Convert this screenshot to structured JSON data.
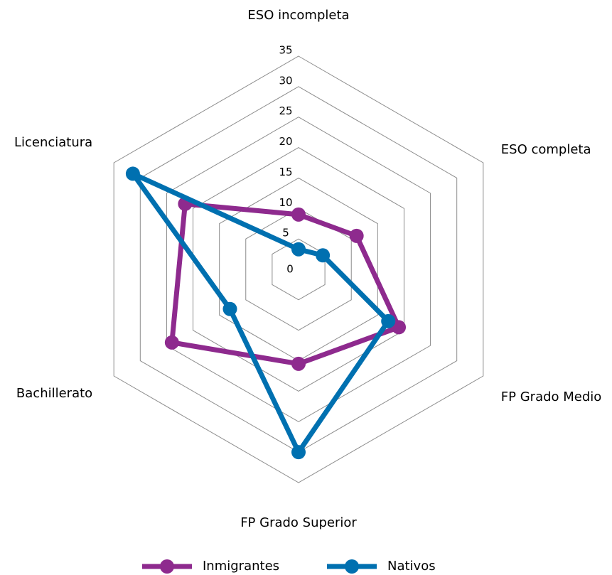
{
  "chart_data": {
    "type": "radar",
    "categories": [
      "ESO incompleta",
      "ESO completa",
      "FP Grado Medio",
      "FP Grado Superior",
      "Bachillerato",
      "Licenciatura"
    ],
    "series": [
      {
        "name": "Inmigrantes",
        "color": "#8e2a8e",
        "values": [
          9,
          11,
          19,
          15.5,
          24,
          21.5
        ]
      },
      {
        "name": "Nativos",
        "color": "#0070b0",
        "values": [
          3.3,
          4.6,
          17,
          30,
          13,
          31.4
        ]
      }
    ],
    "rlim": [
      0,
      35
    ],
    "rticks": [
      0,
      5,
      10,
      15,
      20,
      25,
      30,
      35
    ],
    "grid": true,
    "legend": "bottom"
  }
}
